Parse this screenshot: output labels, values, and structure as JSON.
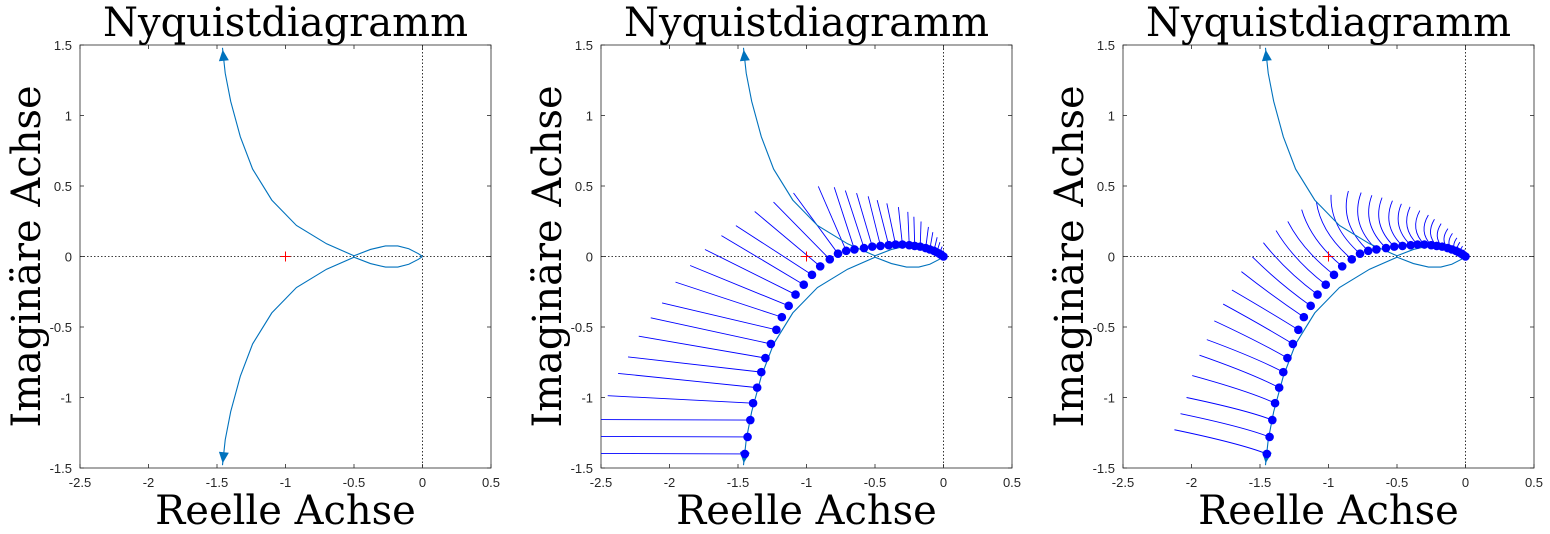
{
  "chart_data": [
    {
      "type": "line",
      "title": "Nyquistdiagramm",
      "xlabel": "Reelle Achse",
      "ylabel": "Imaginäre Achse",
      "xlim": [
        -2.5,
        0.5
      ],
      "ylim": [
        -1.5,
        1.5
      ],
      "xticks": [
        "-2.5",
        "-2",
        "-1.5",
        "-1",
        "-0.5",
        "0",
        "0.5"
      ],
      "yticks": [
        "-1.5",
        "-1",
        "-0.5",
        "0",
        "0.5",
        "1",
        "1.5"
      ],
      "critical_point": [
        -1,
        0
      ],
      "series": [
        {
          "values": [
            [
              -1.46,
              1.48
            ],
            [
              -1.44,
              1.3
            ],
            [
              -1.4,
              1.1
            ],
            [
              -1.33,
              0.85
            ],
            [
              -1.24,
              0.62
            ],
            [
              -1.1,
              0.4
            ],
            [
              -0.92,
              0.22
            ],
            [
              -0.7,
              0.09
            ],
            [
              -0.5,
              0.005
            ],
            [
              -0.38,
              0.05
            ],
            [
              -0.27,
              0.075
            ],
            [
              -0.18,
              0.075
            ],
            [
              -0.1,
              0.055
            ],
            [
              -0.03,
              0.02
            ],
            [
              0.0,
              0.0
            ]
          ]
        },
        {
          "values": [
            [
              0.0,
              0.0
            ],
            [
              -0.03,
              -0.02
            ],
            [
              -0.1,
              -0.055
            ],
            [
              -0.18,
              -0.075
            ],
            [
              -0.27,
              -0.075
            ],
            [
              -0.38,
              -0.05
            ],
            [
              -0.5,
              -0.005
            ],
            [
              -0.7,
              -0.09
            ],
            [
              -0.92,
              -0.22
            ],
            [
              -1.1,
              -0.4
            ],
            [
              -1.24,
              -0.62
            ],
            [
              -1.33,
              -0.85
            ],
            [
              -1.4,
              -1.1
            ],
            [
              -1.44,
              -1.3
            ],
            [
              -1.46,
              -1.48
            ]
          ]
        }
      ],
      "colors": {
        "curve": "#0072BD",
        "critical": "#ff0000"
      }
    },
    {
      "type": "line",
      "title": "Nyquistdiagramm",
      "xlabel": "Reelle Achse",
      "ylabel": "Imaginäre Achse",
      "xlim": [
        -2.5,
        0.5
      ],
      "ylim": [
        -1.5,
        1.5
      ],
      "xticks": [
        "-2.5",
        "-2",
        "-1.5",
        "-1",
        "-0.5",
        "0",
        "0.5"
      ],
      "yticks": [
        "-1.5",
        "-1",
        "-0.5",
        "0",
        "0.5",
        "1",
        "1.5"
      ],
      "critical_point": [
        -1,
        0
      ],
      "series": [
        {
          "values": [
            [
              -1.46,
              1.48
            ],
            [
              -1.44,
              1.3
            ],
            [
              -1.4,
              1.1
            ],
            [
              -1.33,
              0.85
            ],
            [
              -1.24,
              0.62
            ],
            [
              -1.1,
              0.4
            ],
            [
              -0.92,
              0.22
            ],
            [
              -0.7,
              0.09
            ],
            [
              -0.5,
              0.005
            ],
            [
              -0.38,
              0.05
            ],
            [
              -0.27,
              0.075
            ],
            [
              -0.18,
              0.075
            ],
            [
              -0.1,
              0.055
            ],
            [
              -0.03,
              0.02
            ],
            [
              0.0,
              0.0
            ]
          ]
        },
        {
          "values": [
            [
              0.0,
              0.0
            ],
            [
              -0.03,
              -0.02
            ],
            [
              -0.1,
              -0.055
            ],
            [
              -0.18,
              -0.075
            ],
            [
              -0.27,
              -0.075
            ],
            [
              -0.38,
              -0.05
            ],
            [
              -0.5,
              -0.005
            ],
            [
              -0.7,
              -0.09
            ],
            [
              -0.92,
              -0.22
            ],
            [
              -1.1,
              -0.4
            ],
            [
              -1.24,
              -0.62
            ],
            [
              -1.33,
              -0.85
            ],
            [
              -1.4,
              -1.1
            ],
            [
              -1.44,
              -1.3
            ],
            [
              -1.46,
              -1.48
            ]
          ]
        }
      ],
      "markers": [
        [
          -1.45,
          -1.4
        ],
        [
          -1.43,
          -1.28
        ],
        [
          -1.41,
          -1.16
        ],
        [
          -1.39,
          -1.04
        ],
        [
          -1.36,
          -0.93
        ],
        [
          -1.33,
          -0.82
        ],
        [
          -1.3,
          -0.72
        ],
        [
          -1.26,
          -0.62
        ],
        [
          -1.22,
          -0.52
        ],
        [
          -1.18,
          -0.43
        ],
        [
          -1.13,
          -0.35
        ],
        [
          -1.08,
          -0.27
        ],
        [
          -1.02,
          -0.2
        ],
        [
          -0.96,
          -0.13
        ],
        [
          -0.9,
          -0.07
        ],
        [
          -0.83,
          -0.02
        ],
        [
          -0.77,
          0.02
        ],
        [
          -0.71,
          0.04
        ],
        [
          -0.65,
          0.05
        ],
        [
          -0.58,
          0.06
        ],
        [
          -0.52,
          0.07
        ],
        [
          -0.46,
          0.075
        ],
        [
          -0.4,
          0.08
        ],
        [
          -0.35,
          0.085
        ],
        [
          -0.3,
          0.085
        ],
        [
          -0.25,
          0.08
        ],
        [
          -0.21,
          0.075
        ],
        [
          -0.17,
          0.07
        ],
        [
          -0.13,
          0.06
        ],
        [
          -0.1,
          0.05
        ],
        [
          -0.07,
          0.04
        ],
        [
          -0.05,
          0.03
        ],
        [
          -0.03,
          0.02
        ],
        [
          -0.015,
          0.01
        ],
        [
          0.0,
          0.0
        ]
      ],
      "whisker_style": "straight",
      "colors": {
        "curve": "#0072BD",
        "marker": "#0000ff",
        "critical": "#ff0000"
      }
    },
    {
      "type": "line",
      "title": "Nyquistdiagramm",
      "xlabel": "Reelle Achse",
      "ylabel": "Imaginäre Achse",
      "xlim": [
        -2.5,
        0.5
      ],
      "ylim": [
        -1.5,
        1.5
      ],
      "xticks": [
        "-2.5",
        "-2",
        "-1.5",
        "-1",
        "-0.5",
        "0",
        "0.5"
      ],
      "yticks": [
        "-1.5",
        "-1",
        "-0.5",
        "0",
        "0.5",
        "1",
        "1.5"
      ],
      "critical_point": [
        -1,
        0
      ],
      "series": [
        {
          "values": [
            [
              -1.46,
              1.48
            ],
            [
              -1.44,
              1.3
            ],
            [
              -1.4,
              1.1
            ],
            [
              -1.33,
              0.85
            ],
            [
              -1.24,
              0.62
            ],
            [
              -1.1,
              0.4
            ],
            [
              -0.92,
              0.22
            ],
            [
              -0.7,
              0.09
            ],
            [
              -0.5,
              0.005
            ],
            [
              -0.38,
              0.05
            ],
            [
              -0.27,
              0.075
            ],
            [
              -0.18,
              0.075
            ],
            [
              -0.1,
              0.055
            ],
            [
              -0.03,
              0.02
            ],
            [
              0.0,
              0.0
            ]
          ]
        },
        {
          "values": [
            [
              0.0,
              0.0
            ],
            [
              -0.03,
              -0.02
            ],
            [
              -0.1,
              -0.055
            ],
            [
              -0.18,
              -0.075
            ],
            [
              -0.27,
              -0.075
            ],
            [
              -0.38,
              -0.05
            ],
            [
              -0.5,
              -0.005
            ],
            [
              -0.7,
              -0.09
            ],
            [
              -0.92,
              -0.22
            ],
            [
              -1.1,
              -0.4
            ],
            [
              -1.24,
              -0.62
            ],
            [
              -1.33,
              -0.85
            ],
            [
              -1.4,
              -1.1
            ],
            [
              -1.44,
              -1.3
            ],
            [
              -1.46,
              -1.48
            ]
          ]
        }
      ],
      "markers": [
        [
          -1.45,
          -1.4
        ],
        [
          -1.43,
          -1.28
        ],
        [
          -1.41,
          -1.16
        ],
        [
          -1.39,
          -1.04
        ],
        [
          -1.36,
          -0.93
        ],
        [
          -1.33,
          -0.82
        ],
        [
          -1.3,
          -0.72
        ],
        [
          -1.26,
          -0.62
        ],
        [
          -1.22,
          -0.52
        ],
        [
          -1.18,
          -0.43
        ],
        [
          -1.13,
          -0.35
        ],
        [
          -1.08,
          -0.27
        ],
        [
          -1.02,
          -0.2
        ],
        [
          -0.96,
          -0.13
        ],
        [
          -0.9,
          -0.07
        ],
        [
          -0.83,
          -0.02
        ],
        [
          -0.77,
          0.02
        ],
        [
          -0.71,
          0.04
        ],
        [
          -0.65,
          0.05
        ],
        [
          -0.58,
          0.06
        ],
        [
          -0.52,
          0.07
        ],
        [
          -0.46,
          0.075
        ],
        [
          -0.4,
          0.08
        ],
        [
          -0.35,
          0.085
        ],
        [
          -0.3,
          0.085
        ],
        [
          -0.25,
          0.08
        ],
        [
          -0.21,
          0.075
        ],
        [
          -0.17,
          0.07
        ],
        [
          -0.13,
          0.06
        ],
        [
          -0.1,
          0.05
        ],
        [
          -0.07,
          0.04
        ],
        [
          -0.05,
          0.03
        ],
        [
          -0.03,
          0.02
        ],
        [
          -0.015,
          0.01
        ],
        [
          0.0,
          0.0
        ]
      ],
      "whisker_style": "curved",
      "colors": {
        "curve": "#0072BD",
        "marker": "#0000ff",
        "critical": "#ff0000"
      }
    }
  ]
}
